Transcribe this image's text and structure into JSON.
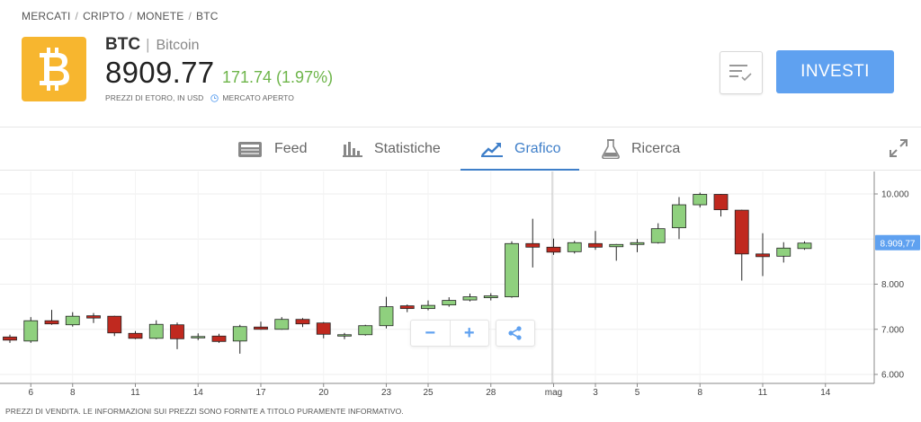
{
  "breadcrumb": [
    "MERCATI",
    "CRIPTO",
    "MONETE",
    "BTC"
  ],
  "instrument": {
    "symbol": "BTC",
    "name": "Bitcoin",
    "price": "8909.77",
    "change": "171.74 (1.97%)",
    "price_note": "PREZZI DI ETORO, IN USD",
    "market_status": "MERCATO APERTO",
    "logo_icon": "bitcoin-logo",
    "logo_color": "#f7b62f"
  },
  "actions": {
    "watchlist_icon": "watchlist-icon",
    "invest_label": "INVESTI",
    "invest_color": "#5fa1f0"
  },
  "tabs": [
    {
      "label": "Feed",
      "icon": "feed-icon",
      "active": false
    },
    {
      "label": "Statistiche",
      "icon": "stats-icon",
      "active": false
    },
    {
      "label": "Grafico",
      "icon": "chart-icon",
      "active": true
    },
    {
      "label": "Ricerca",
      "icon": "research-icon",
      "active": false
    }
  ],
  "chart_controls": {
    "zoom_out": "−",
    "zoom_in": "+",
    "share_icon": "share-icon",
    "expand_icon": "expand-icon"
  },
  "disclaimer": "PREZZI DI VENDITA. LE INFORMAZIONI SUI PREZZI SONO FORNITE A TITOLO PURAMENTE INFORMATIVO.",
  "chart_data": {
    "type": "candlestick",
    "up_color": "#8fd07e",
    "down_color": "#c0291f",
    "y_ticks": [
      "6.000",
      "7.000",
      "8.000",
      "10.000"
    ],
    "ylim": [
      5950,
      10300
    ],
    "current_price_label": "8.909,77",
    "x_ticks": [
      {
        "label": "6",
        "idx": 1
      },
      {
        "label": "8",
        "idx": 3
      },
      {
        "label": "11",
        "idx": 6
      },
      {
        "label": "14",
        "idx": 9
      },
      {
        "label": "17",
        "idx": 12
      },
      {
        "label": "20",
        "idx": 15
      },
      {
        "label": "23",
        "idx": 18
      },
      {
        "label": "25",
        "idx": 20
      },
      {
        "label": "28",
        "idx": 23
      },
      {
        "label": "mag",
        "idx": 26
      },
      {
        "label": "3",
        "idx": 28
      },
      {
        "label": "5",
        "idx": 30
      },
      {
        "label": "8",
        "idx": 33
      },
      {
        "label": "11",
        "idx": 36
      },
      {
        "label": "14",
        "idx": 39
      }
    ],
    "candles": [
      {
        "o": 6830,
        "h": 6880,
        "l": 6700,
        "c": 6760
      },
      {
        "o": 6740,
        "h": 7270,
        "l": 6700,
        "c": 7190
      },
      {
        "o": 7190,
        "h": 7430,
        "l": 7100,
        "c": 7120
      },
      {
        "o": 7100,
        "h": 7380,
        "l": 7060,
        "c": 7290
      },
      {
        "o": 7300,
        "h": 7360,
        "l": 7140,
        "c": 7250
      },
      {
        "o": 7290,
        "h": 7300,
        "l": 6850,
        "c": 6920
      },
      {
        "o": 6910,
        "h": 6960,
        "l": 6780,
        "c": 6800
      },
      {
        "o": 6800,
        "h": 7200,
        "l": 6780,
        "c": 7110
      },
      {
        "o": 7100,
        "h": 7150,
        "l": 6560,
        "c": 6790
      },
      {
        "o": 6810,
        "h": 6910,
        "l": 6760,
        "c": 6840
      },
      {
        "o": 6850,
        "h": 6900,
        "l": 6700,
        "c": 6730
      },
      {
        "o": 6740,
        "h": 7100,
        "l": 6460,
        "c": 7060
      },
      {
        "o": 7050,
        "h": 7170,
        "l": 6990,
        "c": 7000
      },
      {
        "o": 7000,
        "h": 7270,
        "l": 6990,
        "c": 7220
      },
      {
        "o": 7220,
        "h": 7250,
        "l": 7050,
        "c": 7120
      },
      {
        "o": 7140,
        "h": 7160,
        "l": 6800,
        "c": 6890
      },
      {
        "o": 6850,
        "h": 6920,
        "l": 6780,
        "c": 6880
      },
      {
        "o": 6880,
        "h": 7100,
        "l": 6860,
        "c": 7080
      },
      {
        "o": 7080,
        "h": 7720,
        "l": 7020,
        "c": 7500
      },
      {
        "o": 7520,
        "h": 7550,
        "l": 7380,
        "c": 7460
      },
      {
        "o": 7460,
        "h": 7640,
        "l": 7420,
        "c": 7530
      },
      {
        "o": 7540,
        "h": 7710,
        "l": 7500,
        "c": 7640
      },
      {
        "o": 7650,
        "h": 7790,
        "l": 7620,
        "c": 7720
      },
      {
        "o": 7700,
        "h": 7800,
        "l": 7640,
        "c": 7740
      },
      {
        "o": 7720,
        "h": 8950,
        "l": 7700,
        "c": 8900
      },
      {
        "o": 8900,
        "h": 9450,
        "l": 8370,
        "c": 8820
      },
      {
        "o": 8820,
        "h": 9010,
        "l": 8650,
        "c": 8710
      },
      {
        "o": 8720,
        "h": 8960,
        "l": 8680,
        "c": 8920
      },
      {
        "o": 8900,
        "h": 9180,
        "l": 8760,
        "c": 8820
      },
      {
        "o": 8830,
        "h": 8890,
        "l": 8520,
        "c": 8880
      },
      {
        "o": 8880,
        "h": 9000,
        "l": 8710,
        "c": 8920
      },
      {
        "o": 8920,
        "h": 9350,
        "l": 8900,
        "c": 9230
      },
      {
        "o": 9250,
        "h": 9930,
        "l": 9000,
        "c": 9760
      },
      {
        "o": 9760,
        "h": 10030,
        "l": 9700,
        "c": 9990
      },
      {
        "o": 9990,
        "h": 10000,
        "l": 9500,
        "c": 9650
      },
      {
        "o": 9640,
        "h": 9650,
        "l": 8080,
        "c": 8670
      },
      {
        "o": 8670,
        "h": 9130,
        "l": 8180,
        "c": 8610
      },
      {
        "o": 8620,
        "h": 8930,
        "l": 8480,
        "c": 8800
      },
      {
        "o": 8790,
        "h": 8950,
        "l": 8760,
        "c": 8910
      }
    ]
  }
}
